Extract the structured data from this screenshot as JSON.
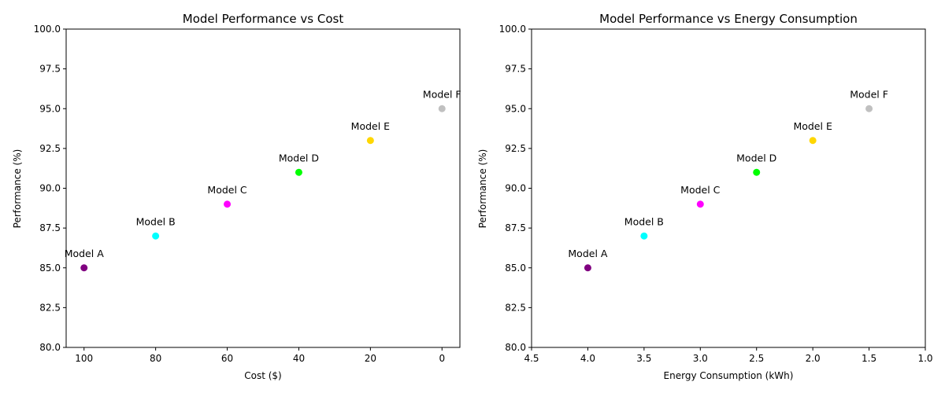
{
  "chart_data": [
    {
      "type": "scatter",
      "title": "Model Performance vs Cost",
      "xlabel": "Cost ($)",
      "ylabel": "Performance (%)",
      "xlim": [
        105,
        -5
      ],
      "ylim": [
        80,
        100
      ],
      "x_inverted": true,
      "xticks": [
        100,
        80,
        60,
        40,
        20,
        0
      ],
      "yticks": [
        80.0,
        82.5,
        85.0,
        87.5,
        90.0,
        92.5,
        95.0,
        97.5,
        100.0
      ],
      "grid": false,
      "points": [
        {
          "label": "Model A",
          "x": 100,
          "y": 85,
          "color": "#800080"
        },
        {
          "label": "Model B",
          "x": 80,
          "y": 87,
          "color": "#00ffff"
        },
        {
          "label": "Model C",
          "x": 60,
          "y": 89,
          "color": "#ff00ff"
        },
        {
          "label": "Model D",
          "x": 40,
          "y": 91,
          "color": "#00ff00"
        },
        {
          "label": "Model E",
          "x": 20,
          "y": 93,
          "color": "#ffd700"
        },
        {
          "label": "Model F",
          "x": 0,
          "y": 95,
          "color": "#c0c0c0"
        }
      ]
    },
    {
      "type": "scatter",
      "title": "Model Performance vs Energy Consumption",
      "xlabel": "Energy Consumption (kWh)",
      "ylabel": "Performance (%)",
      "xlim": [
        4.5,
        1.0
      ],
      "ylim": [
        80,
        100
      ],
      "x_inverted": true,
      "xticks": [
        4.5,
        4.0,
        3.5,
        3.0,
        2.5,
        2.0,
        1.5,
        1.0
      ],
      "yticks": [
        80.0,
        82.5,
        85.0,
        87.5,
        90.0,
        92.5,
        95.0,
        97.5,
        100.0
      ],
      "grid": false,
      "points": [
        {
          "label": "Model A",
          "x": 4.0,
          "y": 85,
          "color": "#800080"
        },
        {
          "label": "Model B",
          "x": 3.5,
          "y": 87,
          "color": "#00ffff"
        },
        {
          "label": "Model C",
          "x": 3.0,
          "y": 89,
          "color": "#ff00ff"
        },
        {
          "label": "Model D",
          "x": 2.5,
          "y": 91,
          "color": "#00ff00"
        },
        {
          "label": "Model E",
          "x": 2.0,
          "y": 93,
          "color": "#ffd700"
        },
        {
          "label": "Model F",
          "x": 1.5,
          "y": 95,
          "color": "#c0c0c0"
        }
      ]
    }
  ]
}
